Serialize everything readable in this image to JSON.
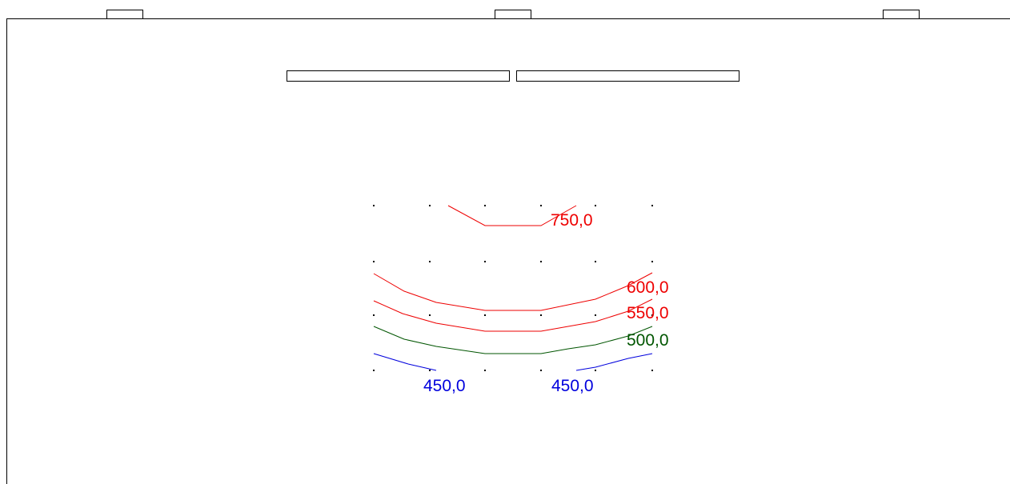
{
  "header": {
    "tabs": [
      {
        "name": "tab-left",
        "label": ""
      },
      {
        "name": "tab-center",
        "label": ""
      },
      {
        "name": "tab-right",
        "label": ""
      }
    ],
    "title_fields": [
      {
        "name": "title-field-left",
        "value": ""
      },
      {
        "name": "title-field-right",
        "value": ""
      }
    ]
  },
  "colors": {
    "red": "#ee0000",
    "green": "#005500",
    "blue": "#0000dd",
    "frame": "#000000",
    "dot": "#000000"
  },
  "chart_data": {
    "type": "contour",
    "grid": {
      "columns": 6,
      "rows": 4
    },
    "levels": [
      {
        "value": 750,
        "label": "750,0",
        "color": "#ee0000"
      },
      {
        "value": 600,
        "label": "600,0",
        "color": "#ee0000"
      },
      {
        "value": 550,
        "label": "550,0",
        "color": "#ee0000"
      },
      {
        "value": 500,
        "label": "500,0",
        "color": "#005500"
      },
      {
        "value": 450,
        "label": "450,0",
        "color": "#0000dd"
      },
      {
        "value": 450,
        "label": "450,0",
        "color": "#0000dd"
      }
    ]
  }
}
